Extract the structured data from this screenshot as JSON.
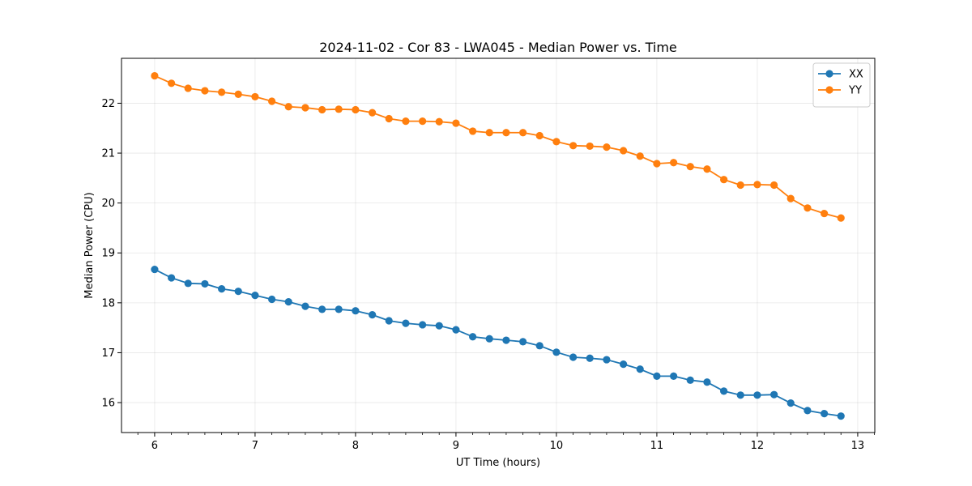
{
  "chart_data": {
    "type": "line",
    "title": "2024-11-02 - Cor 83 - LWA045 - Median Power vs. Time",
    "xlabel": "UT Time (hours)",
    "ylabel": "Median Power (CPU)",
    "xlim": [
      5.67,
      13.17
    ],
    "ylim": [
      15.4,
      22.9
    ],
    "xticks": [
      6,
      7,
      8,
      9,
      10,
      11,
      12,
      13
    ],
    "xtick_labels": [
      "6",
      "7",
      "8",
      "9",
      "10",
      "11",
      "12",
      "13"
    ],
    "minor_xticks": [
      5.667,
      5.833,
      6.167,
      6.333,
      6.5,
      6.667,
      6.833,
      7.167,
      7.333,
      7.5,
      7.667,
      7.833,
      8.167,
      8.333,
      8.5,
      8.667,
      8.833,
      9.167,
      9.333,
      9.5,
      9.667,
      9.833,
      10.167,
      10.333,
      10.5,
      10.667,
      10.833,
      11.167,
      11.333,
      11.5,
      11.667,
      11.833,
      12.167,
      12.333,
      12.5,
      12.667,
      12.833,
      13.167
    ],
    "yticks": [
      16,
      17,
      18,
      19,
      20,
      21,
      22
    ],
    "ytick_labels": [
      "16",
      "17",
      "18",
      "19",
      "20",
      "21",
      "22"
    ],
    "grid": true,
    "legend_position": "top-right",
    "x": [
      6.0,
      6.167,
      6.333,
      6.5,
      6.667,
      6.833,
      7.0,
      7.167,
      7.333,
      7.5,
      7.667,
      7.833,
      8.0,
      8.167,
      8.333,
      8.5,
      8.667,
      8.833,
      9.0,
      9.167,
      9.333,
      9.5,
      9.667,
      9.833,
      10.0,
      10.167,
      10.333,
      10.5,
      10.667,
      10.833,
      11.0,
      11.167,
      11.333,
      11.5,
      11.667,
      11.833,
      12.0,
      12.167,
      12.333,
      12.5,
      12.667,
      12.833
    ],
    "series": [
      {
        "name": "XX",
        "color": "#1f77b4",
        "values": [
          18.67,
          18.5,
          18.39,
          18.38,
          18.28,
          18.23,
          18.15,
          18.07,
          18.02,
          17.93,
          17.87,
          17.87,
          17.84,
          17.76,
          17.64,
          17.59,
          17.56,
          17.54,
          17.46,
          17.32,
          17.28,
          17.25,
          17.22,
          17.14,
          17.01,
          16.91,
          16.89,
          16.86,
          16.77,
          16.67,
          16.53,
          16.53,
          16.45,
          16.41,
          16.23,
          16.15,
          16.15,
          16.16,
          15.99,
          15.84,
          15.78,
          15.73
        ]
      },
      {
        "name": "YY",
        "color": "#ff7f0e",
        "values": [
          22.55,
          22.4,
          22.3,
          22.25,
          22.22,
          22.18,
          22.13,
          22.04,
          21.93,
          21.91,
          21.87,
          21.88,
          21.87,
          21.81,
          21.69,
          21.64,
          21.64,
          21.63,
          21.6,
          21.44,
          21.41,
          21.41,
          21.41,
          21.35,
          21.23,
          21.15,
          21.14,
          21.12,
          21.05,
          20.94,
          20.79,
          20.81,
          20.73,
          20.68,
          20.47,
          20.36,
          20.37,
          20.36,
          20.09,
          19.9,
          19.79,
          19.7
        ]
      }
    ]
  }
}
